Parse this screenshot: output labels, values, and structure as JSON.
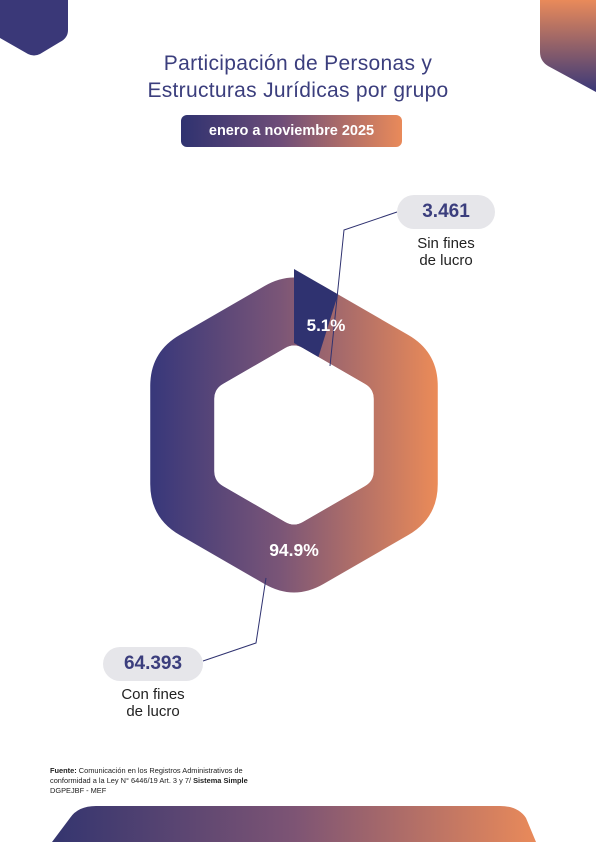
{
  "title_lines": [
    "Participación de Personas y",
    "Estructuras Jurídicas por grupo"
  ],
  "period": "enero a noviembre 2025",
  "chart_data": {
    "type": "pie",
    "style": "hexagonal donut with gradient",
    "segments": [
      {
        "category_line1": "Sin fines",
        "category_line2": "de lucro",
        "value": 3461,
        "value_label": "3.461",
        "percent_label": "5.1%",
        "color": "#2f3270"
      },
      {
        "category_line1": "Con fines",
        "category_line2": "de lucro",
        "value": 64393,
        "value_label": "64.393",
        "percent_label": "94.9%",
        "color": "#e98a5a"
      }
    ],
    "gradient_colors": [
      "#3a3a7a",
      "#7a5577",
      "#e98a5a"
    ]
  },
  "source": {
    "label": "Fuente:",
    "line1": "Comunicación en los Registros Administrativos de",
    "line2_prefix": "conformidad a la Ley N° 6446/19 Art. 3 y 7/",
    "line2_bold": "Sistema Simple",
    "line3": "DGPEJBF - MEF"
  },
  "colors": {
    "navy": "#2f3270",
    "orange": "#e98a5a",
    "title": "#3b3e7d",
    "pill": "#e6e6ea"
  }
}
